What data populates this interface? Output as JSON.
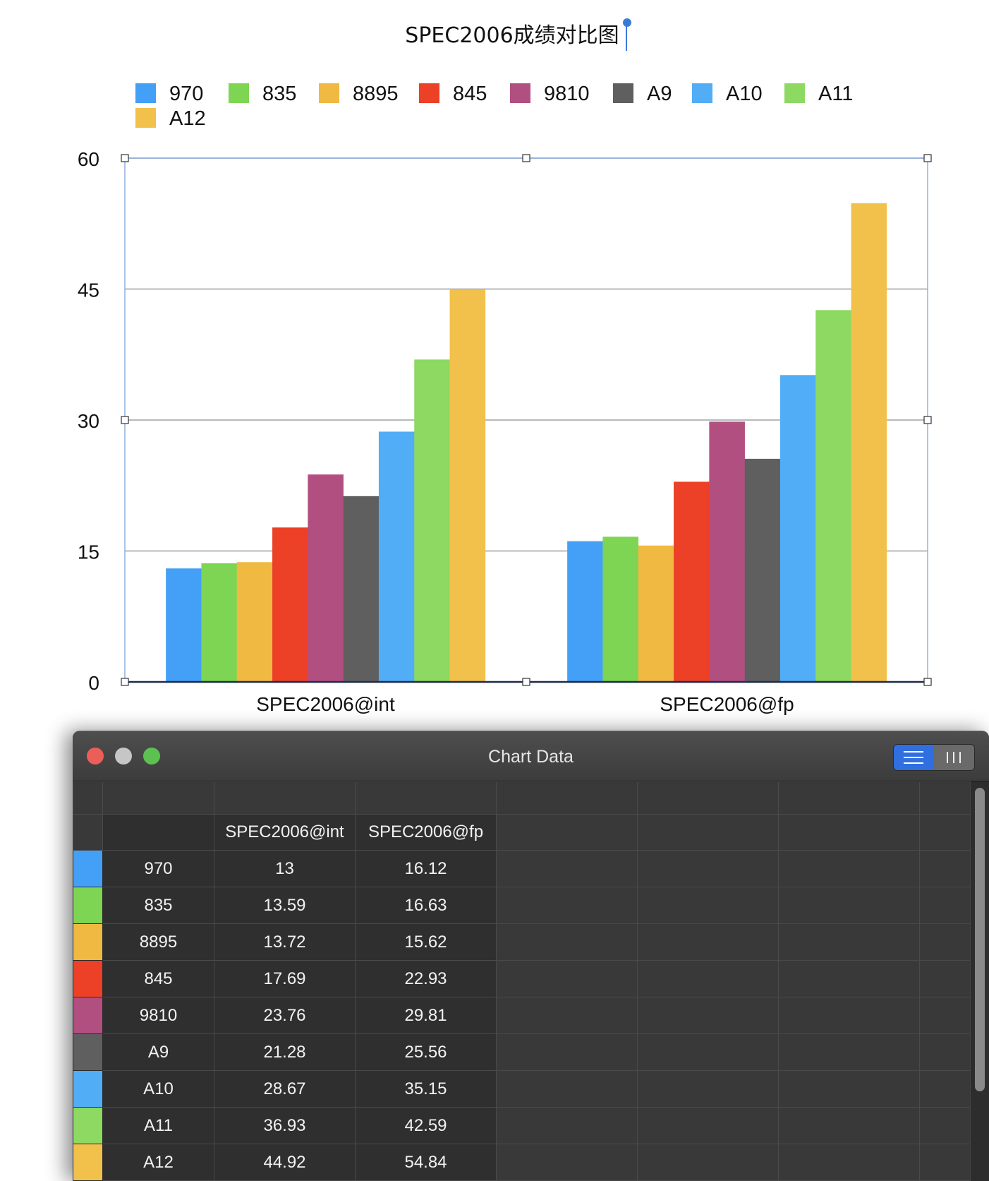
{
  "chart_data": {
    "type": "bar",
    "title": "SPEC2006成绩对比图",
    "categories": [
      "SPEC2006@int",
      "SPEC2006@fp"
    ],
    "ylim": [
      0,
      60
    ],
    "yticks": [
      0,
      15,
      30,
      45,
      60
    ],
    "grid": true,
    "legend": "top",
    "series": [
      {
        "name": "970",
        "color": "#43a0f6",
        "values": [
          13,
          16.12
        ]
      },
      {
        "name": "835",
        "color": "#7ed553",
        "values": [
          13.59,
          16.63
        ]
      },
      {
        "name": "8895",
        "color": "#f0b941",
        "values": [
          13.72,
          15.62
        ]
      },
      {
        "name": "845",
        "color": "#ec4027",
        "values": [
          17.69,
          22.93
        ]
      },
      {
        "name": "9810",
        "color": "#b24f81",
        "values": [
          23.76,
          29.81
        ]
      },
      {
        "name": "A9",
        "color": "#5f5f5f",
        "values": [
          21.28,
          25.56
        ]
      },
      {
        "name": "A10",
        "color": "#51adf6",
        "values": [
          28.67,
          35.15
        ]
      },
      {
        "name": "A11",
        "color": "#8dd962",
        "values": [
          36.93,
          42.59
        ]
      },
      {
        "name": "A12",
        "color": "#f2c14b",
        "values": [
          44.92,
          54.84
        ]
      }
    ]
  },
  "window": {
    "title": "Chart Data",
    "view_toggle": [
      "list-icon",
      "columns-icon"
    ]
  },
  "table": {
    "headers": [
      "SPEC2006@int",
      "SPEC2006@fp"
    ],
    "rows": [
      {
        "label": "970",
        "color": "#43a0f6",
        "values": [
          "13",
          "16.12"
        ]
      },
      {
        "label": "835",
        "color": "#7ed553",
        "values": [
          "13.59",
          "16.63"
        ]
      },
      {
        "label": "8895",
        "color": "#f0b941",
        "values": [
          "13.72",
          "15.62"
        ]
      },
      {
        "label": "845",
        "color": "#ec4027",
        "values": [
          "17.69",
          "22.93"
        ]
      },
      {
        "label": "9810",
        "color": "#b24f81",
        "values": [
          "23.76",
          "29.81"
        ]
      },
      {
        "label": "A9",
        "color": "#5f5f5f",
        "values": [
          "21.28",
          "25.56"
        ]
      },
      {
        "label": "A10",
        "color": "#51adf6",
        "values": [
          "28.67",
          "35.15"
        ]
      },
      {
        "label": "A11",
        "color": "#8dd962",
        "values": [
          "36.93",
          "42.59"
        ]
      },
      {
        "label": "A12",
        "color": "#f2c14b",
        "values": [
          "44.92",
          "54.84"
        ]
      }
    ]
  }
}
